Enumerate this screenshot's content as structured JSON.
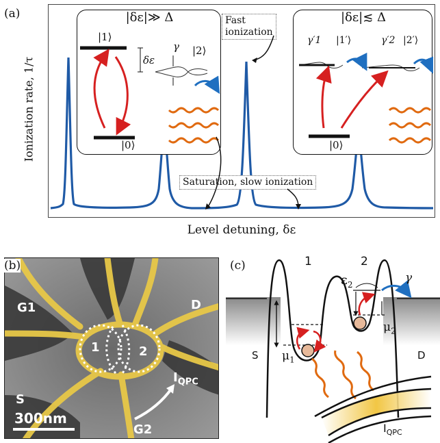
{
  "panel_a": {
    "label": "(a)",
    "y_axis_label": "Ionization rate, 1/τ",
    "x_axis_label": "Level detuning, δε",
    "inset_left": {
      "title": "|δε|≫ Δ",
      "state1": "|1⟩",
      "state2": "|2⟩",
      "state0": "|0⟩",
      "detuning": "δε",
      "gamma": "γ"
    },
    "inset_right": {
      "title": "|δε|≲ Δ",
      "gamma1": "γ′1",
      "gamma2": "γ′2",
      "state1p": "|1′⟩",
      "state2p": "|2′⟩",
      "state0": "|0⟩"
    },
    "note_fast": "Fast ionization",
    "note_fast_line1": "Fast",
    "note_fast_line2": "ionization",
    "note_saturation": "Saturation, slow ionization",
    "colors": {
      "curve": "#1f5aa6",
      "transition": "#d62020",
      "photon": "#e06a10",
      "tunnel": "#1f6fc0"
    }
  },
  "panel_b": {
    "label": "(b)",
    "gate_G1": "G1",
    "gate_D": "D",
    "gate_S": "S",
    "gate_G2": "G2",
    "dot1": "1",
    "dot2": "2",
    "qpc": "I",
    "qpc_sub": "QPC",
    "scale_bar": "300nm"
  },
  "panel_c": {
    "label": "(c)",
    "dot1": "1",
    "dot2": "2",
    "epsilon": "ε",
    "epsilon_sub": "2",
    "gamma": "γ",
    "mu1": "μ",
    "mu1_sub": "1",
    "mu2": "μ",
    "mu2_sub": "2",
    "lead_S": "S",
    "lead_D": "D",
    "qpc": "I",
    "qpc_sub": "QPC"
  }
}
